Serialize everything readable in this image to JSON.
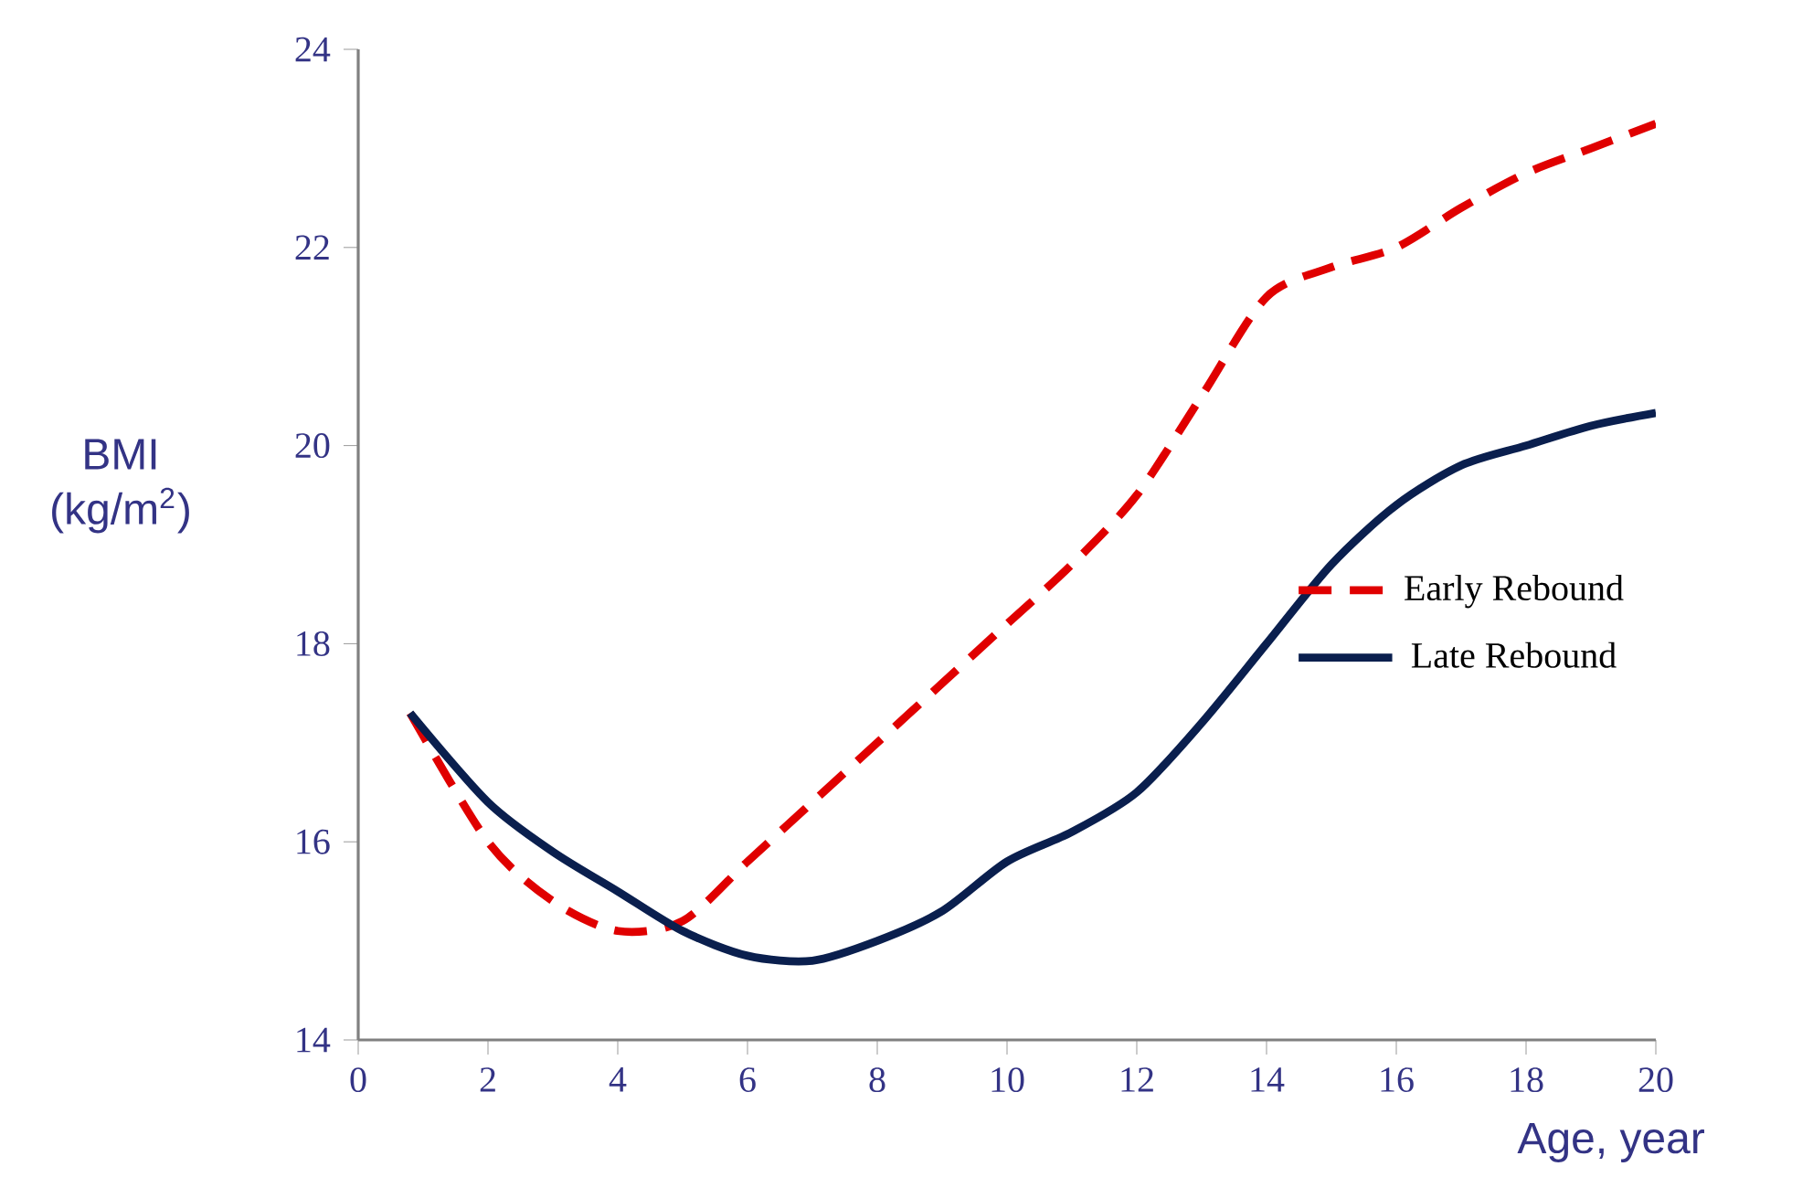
{
  "chart_data": {
    "type": "line",
    "ylabel": "BMI (kg/m$^{2}$)",
    "xlabel": "Age, year",
    "xlim": [
      0,
      20
    ],
    "ylim": [
      14,
      24
    ],
    "xticks": [
      0,
      2,
      4,
      6,
      8,
      10,
      12,
      14,
      16,
      18,
      20
    ],
    "yticks": [
      14,
      16,
      18,
      20,
      22,
      24
    ],
    "legend": "right",
    "series": [
      {
        "name": "Early Rebound",
        "color": "#e00000",
        "line_style": "dashed",
        "x": [
          0.8,
          2,
          3,
          4,
          5,
          6,
          7,
          8,
          9,
          10,
          11,
          12,
          13,
          14,
          15,
          16,
          17,
          18,
          19,
          20
        ],
        "values": [
          17.3,
          16.0,
          15.4,
          15.1,
          15.2,
          15.8,
          16.4,
          17.0,
          17.6,
          18.2,
          18.8,
          19.5,
          20.5,
          21.5,
          21.8,
          22.0,
          22.4,
          22.75,
          23.0,
          23.25
        ]
      },
      {
        "name": "Late Rebound",
        "color": "#0a1f4e",
        "line_style": "solid",
        "x": [
          0.8,
          2,
          3,
          4,
          5,
          6,
          7,
          8,
          9,
          10,
          11,
          12,
          13,
          14,
          15,
          16,
          17,
          18,
          19,
          20
        ],
        "values": [
          17.3,
          16.4,
          15.9,
          15.5,
          15.1,
          14.85,
          14.8,
          15.0,
          15.3,
          15.8,
          16.1,
          16.5,
          17.2,
          18.0,
          18.8,
          19.4,
          19.8,
          20.0,
          20.2,
          20.33
        ]
      }
    ]
  }
}
